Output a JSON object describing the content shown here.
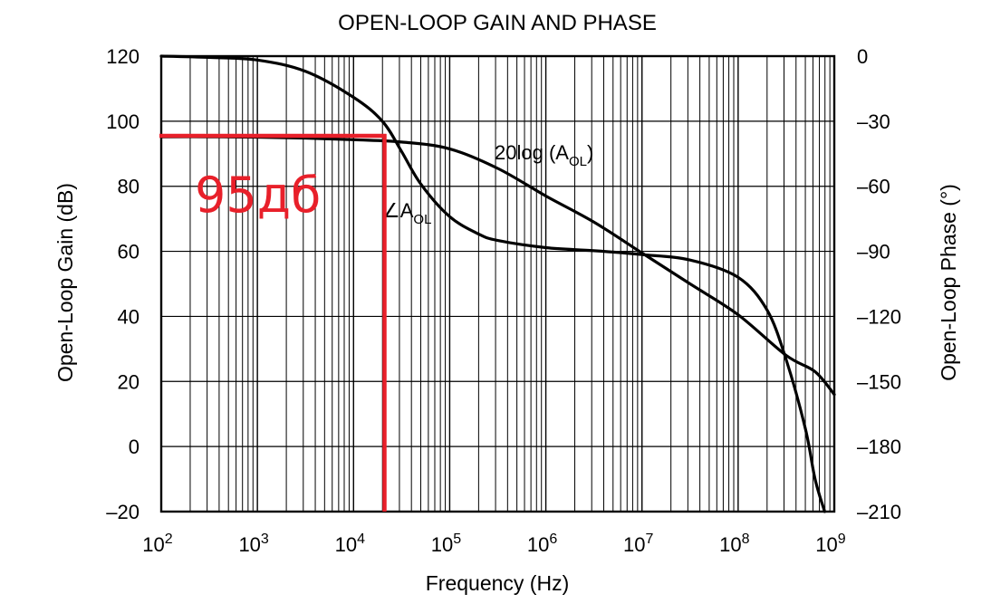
{
  "chart_data": {
    "type": "line",
    "title": "OPEN-LOOP GAIN AND PHASE",
    "xlabel": "Frequency (Hz)",
    "ylabel_left": "Open-Loop Gain (dB)",
    "ylabel_right": "Open-Loop Phase (°)",
    "x_scale": "log",
    "xlim": [
      100,
      1000000000
    ],
    "ylim_left": [
      -20,
      120
    ],
    "ylim_right": [
      -210,
      0
    ],
    "x_ticks": [
      {
        "value": 100,
        "base": "10",
        "exp": "2"
      },
      {
        "value": 1000,
        "base": "10",
        "exp": "3"
      },
      {
        "value": 10000,
        "base": "10",
        "exp": "4"
      },
      {
        "value": 100000,
        "base": "10",
        "exp": "5"
      },
      {
        "value": 1000000,
        "base": "10",
        "exp": "6"
      },
      {
        "value": 10000000,
        "base": "10",
        "exp": "7"
      },
      {
        "value": 100000000,
        "base": "10",
        "exp": "8"
      },
      {
        "value": 1000000000,
        "base": "10",
        "exp": "9"
      }
    ],
    "y_ticks_left": [
      {
        "value": 120,
        "label": "120"
      },
      {
        "value": 100,
        "label": "100"
      },
      {
        "value": 80,
        "label": "80"
      },
      {
        "value": 60,
        "label": "60"
      },
      {
        "value": 40,
        "label": "40"
      },
      {
        "value": 20,
        "label": "20"
      },
      {
        "value": 0,
        "label": "0"
      },
      {
        "value": -20,
        "label": "–20"
      }
    ],
    "y_ticks_right": [
      {
        "value": 0,
        "label": "0"
      },
      {
        "value": -30,
        "label": "–30"
      },
      {
        "value": -60,
        "label": "–60"
      },
      {
        "value": -90,
        "label": "–90"
      },
      {
        "value": -120,
        "label": "–120"
      },
      {
        "value": -150,
        "label": "–150"
      },
      {
        "value": -180,
        "label": "–180"
      },
      {
        "value": -210,
        "label": "–210"
      }
    ],
    "grid": true,
    "series": [
      {
        "name": "20log (AOL)",
        "label_main": "20log (A",
        "label_sub": "OL",
        "label_close": ")",
        "axis": "left",
        "x": [
          100,
          316,
          1000,
          3162,
          10000,
          31623,
          100000,
          316228,
          1000000,
          3162278,
          10000000,
          31622777,
          100000000,
          316227766,
          630957344,
          1000000000
        ],
        "y": [
          95.2,
          95.2,
          95.1,
          94.8,
          94.3,
          93.6,
          91.5,
          85.5,
          77,
          69,
          59.5,
          50,
          40.5,
          28,
          23,
          16
        ]
      },
      {
        "name": "∠AOL",
        "label_main": "∠A",
        "label_sub": "OL",
        "label_close": "",
        "axis": "right",
        "x": [
          100,
          316,
          1000,
          3162,
          10000,
          19953,
          31623,
          50119,
          100000,
          199526,
          316228,
          1000000,
          3162278,
          10000000,
          31622777,
          100000000,
          199526231,
          316227766,
          501187234,
          630957344,
          794328235
        ],
        "y": [
          0,
          -0.6,
          -1.8,
          -7,
          -19,
          -30,
          -44,
          -59,
          -74,
          -82,
          -85,
          -88.3,
          -89.7,
          -91.5,
          -94,
          -102,
          -117,
          -140,
          -172,
          -195,
          -210
        ]
      }
    ],
    "annotation": {
      "text": "95дб",
      "color": "#e8202a",
      "gain_db": 95.5,
      "freq_hz": 21000
    }
  }
}
